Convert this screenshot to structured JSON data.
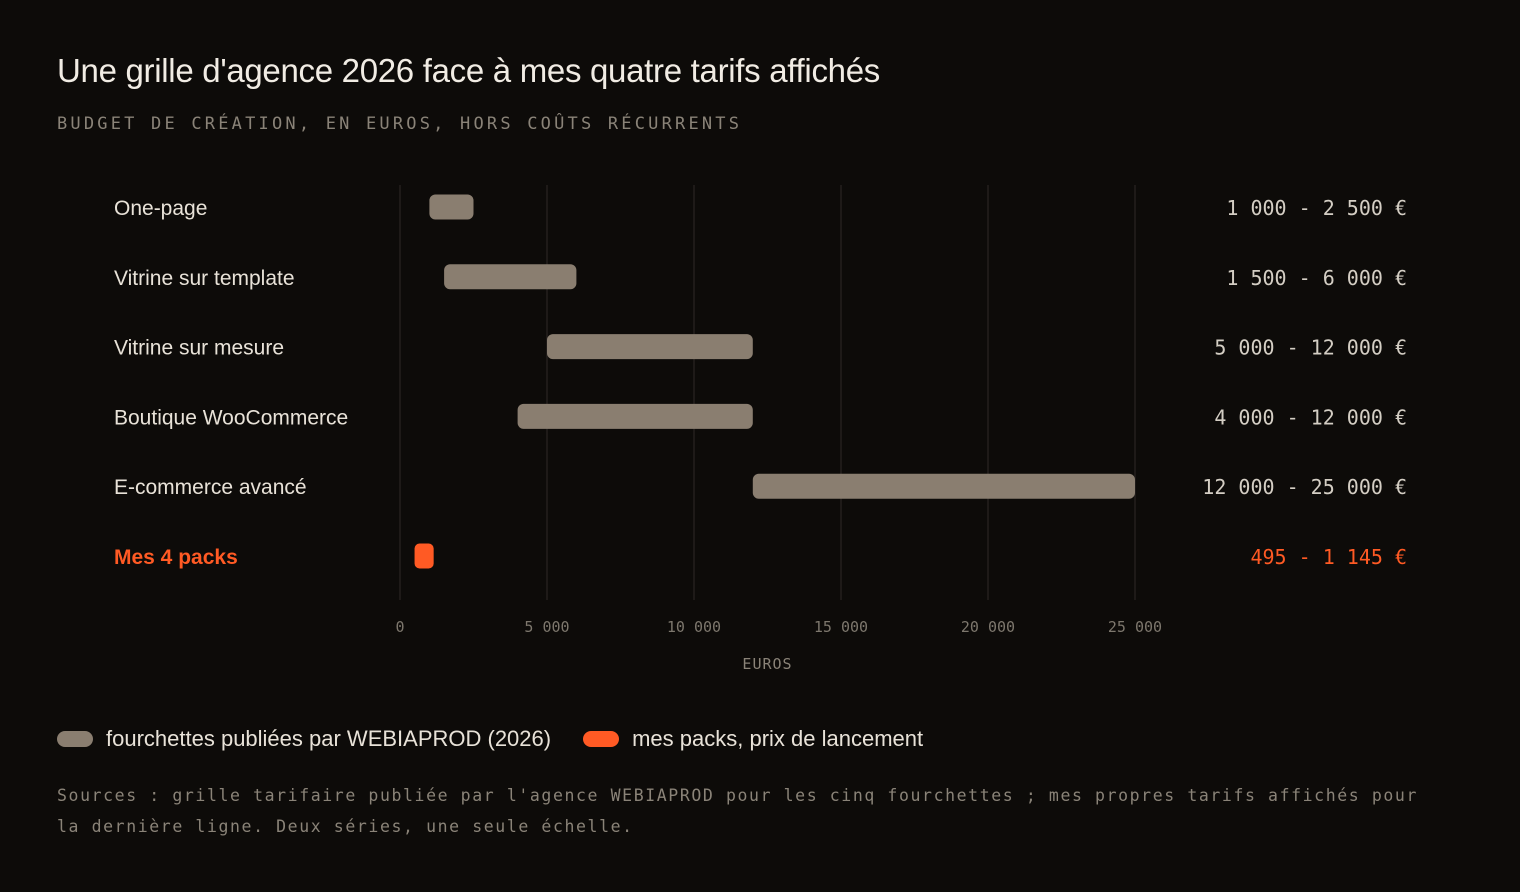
{
  "header": {
    "title": "Une grille d'agence 2026 face à mes quatre tarifs affichés",
    "subtitle": "BUDGET DE CRÉATION, EN EUROS, HORS COÛTS RÉCURRENTS"
  },
  "colors": {
    "background": "#0d0b09",
    "agency_bar": "#8a7e70",
    "highlight": "#ff5a24",
    "gridline": "#2a2622"
  },
  "chart_data": {
    "type": "bar",
    "orientation": "horizontal-range",
    "xlabel": "EUROS",
    "xlim": [
      0,
      25000
    ],
    "xticks": [
      0,
      5000,
      10000,
      15000,
      20000,
      25000
    ],
    "xtick_labels": [
      "0",
      "5 000",
      "10 000",
      "15 000",
      "20 000",
      "25 000"
    ],
    "grid": true,
    "legend_position": "bottom-left",
    "series": [
      {
        "name": "fourchettes publiées par WEBIAPROD (2026)",
        "color": "#8a7e70"
      },
      {
        "name": "mes packs, prix de lancement",
        "color": "#ff5a24"
      }
    ],
    "rows": [
      {
        "category": "One-page",
        "low": 1000,
        "high": 2500,
        "range_label": "1 000 - 2 500 €",
        "series": 0
      },
      {
        "category": "Vitrine sur template",
        "low": 1500,
        "high": 6000,
        "range_label": "1 500 - 6 000 €",
        "series": 0
      },
      {
        "category": "Vitrine sur mesure",
        "low": 5000,
        "high": 12000,
        "range_label": "5 000 - 12 000 €",
        "series": 0
      },
      {
        "category": "Boutique WooCommerce",
        "low": 4000,
        "high": 12000,
        "range_label": "4 000 - 12 000 €",
        "series": 0
      },
      {
        "category": "E-commerce avancé",
        "low": 12000,
        "high": 25000,
        "range_label": "12 000 - 25 000 €",
        "series": 0
      },
      {
        "category": "Mes 4 packs",
        "low": 495,
        "high": 1145,
        "range_label": "495 - 1 145 €",
        "series": 1
      }
    ]
  },
  "source": "Sources : grille tarifaire publiée par l'agence WEBIAPROD pour les cinq fourchettes ; mes propres tarifs affichés pour la dernière ligne. Deux séries, une seule échelle."
}
